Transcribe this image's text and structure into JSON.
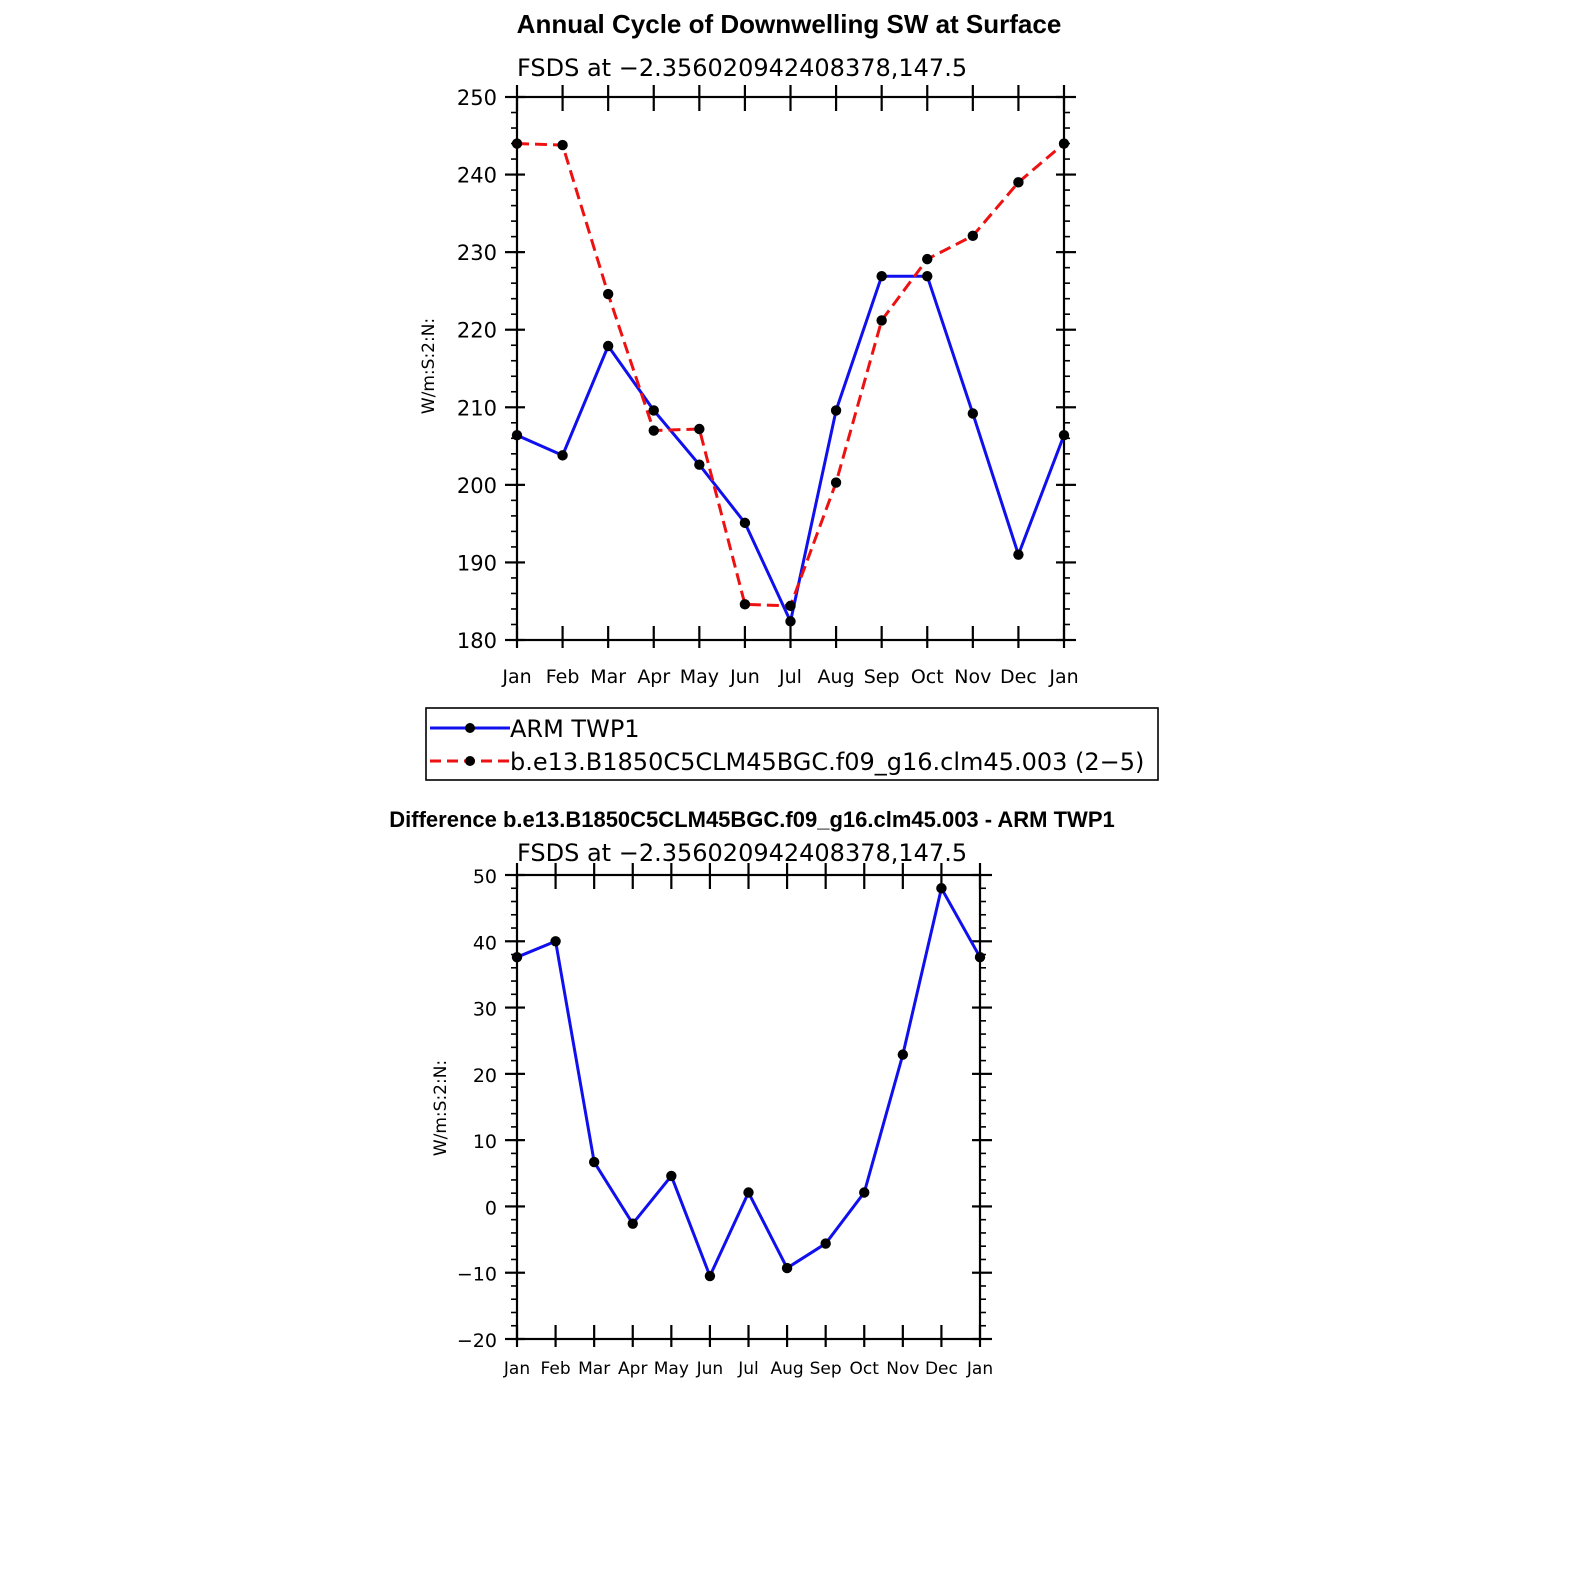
{
  "colors": {
    "obs_line": "#1010ee",
    "model_line": "#ee1111",
    "diff_line": "#1010ee",
    "marker": "#000000",
    "axis": "#000000"
  },
  "chart_data": [
    {
      "type": "line",
      "title": "Annual Cycle of Downwelling SW at Surface",
      "subtitle": "FSDS at −2.356020942408378,147.5",
      "xlabel": "",
      "ylabel": "W/m:S:2:N:",
      "categories": [
        "Jan",
        "Feb",
        "Mar",
        "Apr",
        "May",
        "Jun",
        "Jul",
        "Aug",
        "Sep",
        "Oct",
        "Nov",
        "Dec",
        "Jan"
      ],
      "ylim": [
        180,
        250
      ],
      "yticks": [
        180,
        190,
        200,
        210,
        220,
        230,
        240,
        250
      ],
      "yticklabels": [
        "180",
        "190",
        "200",
        "210",
        "220",
        "230",
        "240",
        "250"
      ],
      "grid": false,
      "legend": "below",
      "series": [
        {
          "name": "ARM TWP1",
          "style": "solid",
          "values": [
            206.4,
            203.8,
            217.9,
            209.6,
            202.6,
            195.1,
            182.4,
            209.6,
            226.9,
            226.9,
            209.2,
            191.0,
            206.4
          ]
        },
        {
          "name": "b.e13.B1850C5CLM45BGC.f09_g16.clm45.003 (2−5)",
          "style": "dashed",
          "values": [
            244.0,
            243.8,
            224.6,
            207.0,
            207.2,
            184.6,
            184.4,
            200.3,
            221.2,
            229.1,
            232.1,
            239.0,
            244.0
          ]
        }
      ]
    },
    {
      "type": "line",
      "title": "Difference b.e13.B1850C5CLM45BGC.f09_g16.clm45.003 - ARM TWP1",
      "subtitle": "FSDS at −2.356020942408378,147.5",
      "xlabel": "",
      "ylabel": "W/m:S:2:N:",
      "categories": [
        "Jan",
        "Feb",
        "Mar",
        "Apr",
        "May",
        "Jun",
        "Jul",
        "Aug",
        "Sep",
        "Oct",
        "Nov",
        "Dec",
        "Jan"
      ],
      "ylim": [
        -20,
        50
      ],
      "yticks": [
        -20,
        -10,
        0,
        10,
        20,
        30,
        40,
        50
      ],
      "yticklabels": [
        "−20",
        "−10",
        "0",
        "10",
        "20",
        "30",
        "40",
        "50"
      ],
      "grid": false,
      "series": [
        {
          "style": "solid",
          "values": [
            37.6,
            40.0,
            6.7,
            -2.6,
            4.6,
            -10.5,
            2.1,
            -9.3,
            -5.6,
            2.1,
            22.9,
            48.0,
            37.6
          ]
        }
      ]
    }
  ]
}
